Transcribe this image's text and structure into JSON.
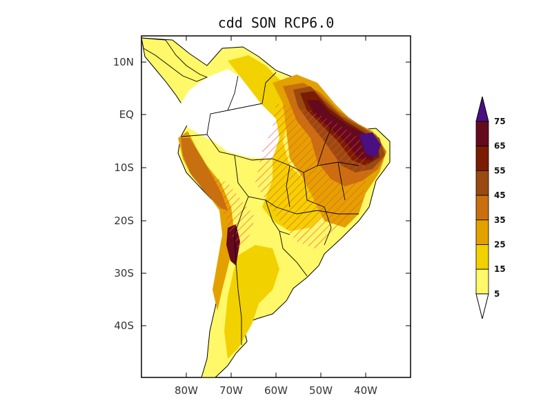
{
  "map": {
    "title": "cdd SON RCP6.0",
    "lat_labels": [
      "10N",
      "EQ",
      "10S",
      "20S",
      "30S",
      "40S"
    ],
    "lon_labels": [
      "80W",
      "70W",
      "60W",
      "50W",
      "40W"
    ]
  },
  "colorbar": {
    "levels": [
      "5",
      "15",
      "25",
      "35",
      "45",
      "55",
      "65",
      "75"
    ],
    "colors": [
      "#ffffff",
      "#fff868",
      "#f2d100",
      "#e3a100",
      "#c8700f",
      "#9a4a10",
      "#7a1c00",
      "#650a1e",
      "#4a0f80"
    ],
    "orientation": "vertical, right side"
  },
  "palette": {
    "no_data": "#ffffff",
    "hatch_significance": "#ff4040",
    "hatch_alt": "#33a0ff",
    "borders": "#000000"
  }
}
